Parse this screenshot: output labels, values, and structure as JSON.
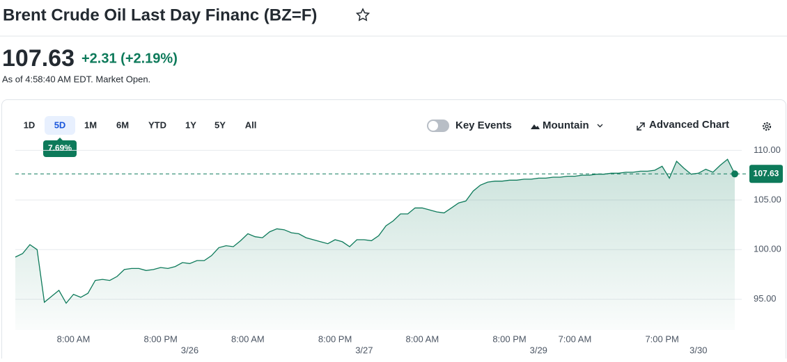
{
  "header": {
    "title": "Brent Crude Oil Last Day Financ (BZ=F)"
  },
  "quote": {
    "price": "107.63",
    "change": "+2.31 (+2.19%)",
    "as_of": "As of 4:58:40 AM EDT. Market Open."
  },
  "toolbar": {
    "ranges": [
      "1D",
      "5D",
      "1M",
      "6M",
      "YTD",
      "1Y",
      "5Y",
      "All"
    ],
    "active_range": 1,
    "range_change": "7.69%",
    "key_events": "Key Events",
    "chart_type": "Mountain",
    "advanced": "Advanced Chart"
  },
  "chart_data": {
    "type": "area",
    "color": "#0d7a5a",
    "categories": [
      null,
      null,
      null,
      null,
      null,
      null,
      null,
      null,
      "8:00 AM",
      null,
      null,
      null,
      null,
      null,
      null,
      null,
      null,
      null,
      null,
      null,
      "8:00 PM",
      null,
      null,
      null,
      null,
      null,
      null,
      null,
      null,
      null,
      null,
      null,
      "8:00 AM",
      null,
      null,
      null,
      null,
      null,
      null,
      null,
      null,
      null,
      null,
      null,
      "8:00 PM",
      null,
      null,
      null,
      null,
      null,
      null,
      null,
      null,
      null,
      null,
      null,
      "8:00 AM",
      null,
      null,
      null,
      null,
      null,
      null,
      null,
      null,
      null,
      null,
      null,
      "8:00 PM",
      null,
      null,
      null,
      null,
      null,
      null,
      null,
      null,
      "7:00 AM",
      null,
      null,
      null,
      null,
      null,
      null,
      null,
      null,
      null,
      null,
      null,
      "7:00 PM",
      null,
      null,
      null,
      null,
      null,
      null,
      null,
      null,
      null,
      null
    ],
    "date_labels": [
      null,
      null,
      null,
      null,
      null,
      null,
      null,
      null,
      null,
      null,
      null,
      null,
      null,
      null,
      null,
      null,
      null,
      null,
      null,
      null,
      null,
      null,
      null,
      null,
      "3/26",
      null,
      null,
      null,
      null,
      null,
      null,
      null,
      null,
      null,
      null,
      null,
      null,
      null,
      null,
      null,
      null,
      null,
      null,
      null,
      null,
      null,
      null,
      null,
      "3/27",
      null,
      null,
      null,
      null,
      null,
      null,
      null,
      null,
      null,
      null,
      null,
      null,
      null,
      null,
      null,
      null,
      null,
      null,
      null,
      null,
      null,
      null,
      null,
      "3/29",
      null,
      null,
      null,
      null,
      null,
      null,
      null,
      null,
      null,
      null,
      null,
      null,
      null,
      null,
      null,
      null,
      null,
      null,
      null,
      null,
      null,
      "3/30",
      null,
      null,
      null,
      null,
      null
    ],
    "values": [
      99.25,
      99.6,
      100.5,
      100.0,
      94.7,
      95.3,
      95.9,
      94.6,
      95.5,
      95.2,
      95.6,
      96.9,
      97.0,
      96.9,
      97.3,
      98.0,
      98.1,
      98.1,
      97.9,
      98.0,
      98.2,
      98.1,
      98.3,
      98.7,
      98.6,
      98.9,
      98.9,
      99.4,
      100.2,
      100.4,
      100.3,
      100.9,
      101.6,
      101.3,
      101.2,
      101.8,
      102.1,
      102.0,
      101.7,
      101.6,
      101.2,
      101.0,
      100.8,
      100.6,
      101.0,
      100.8,
      100.3,
      101.0,
      101.0,
      100.9,
      101.4,
      102.4,
      102.9,
      103.6,
      103.6,
      104.2,
      104.2,
      104.0,
      103.8,
      103.7,
      104.2,
      104.7,
      104.9,
      105.9,
      106.5,
      106.8,
      106.9,
      106.9,
      107.0,
      107.0,
      107.1,
      107.1,
      107.2,
      107.2,
      107.3,
      107.3,
      107.4,
      107.4,
      107.5,
      107.5,
      107.6,
      107.6,
      107.7,
      107.7,
      107.8,
      107.8,
      107.9,
      107.9,
      108.0,
      108.4,
      107.2,
      108.9,
      108.2,
      107.6,
      107.7,
      108.1,
      107.8,
      108.5,
      109.1,
      107.63
    ],
    "ylim": [
      91.9,
      110.8
    ],
    "yticks": [
      {
        "value": 95,
        "label": "95.00"
      },
      {
        "value": 100,
        "label": "100.00"
      },
      {
        "value": 105,
        "label": "105.00"
      },
      {
        "value": 110,
        "label": "110.00"
      }
    ],
    "grid": true
  }
}
